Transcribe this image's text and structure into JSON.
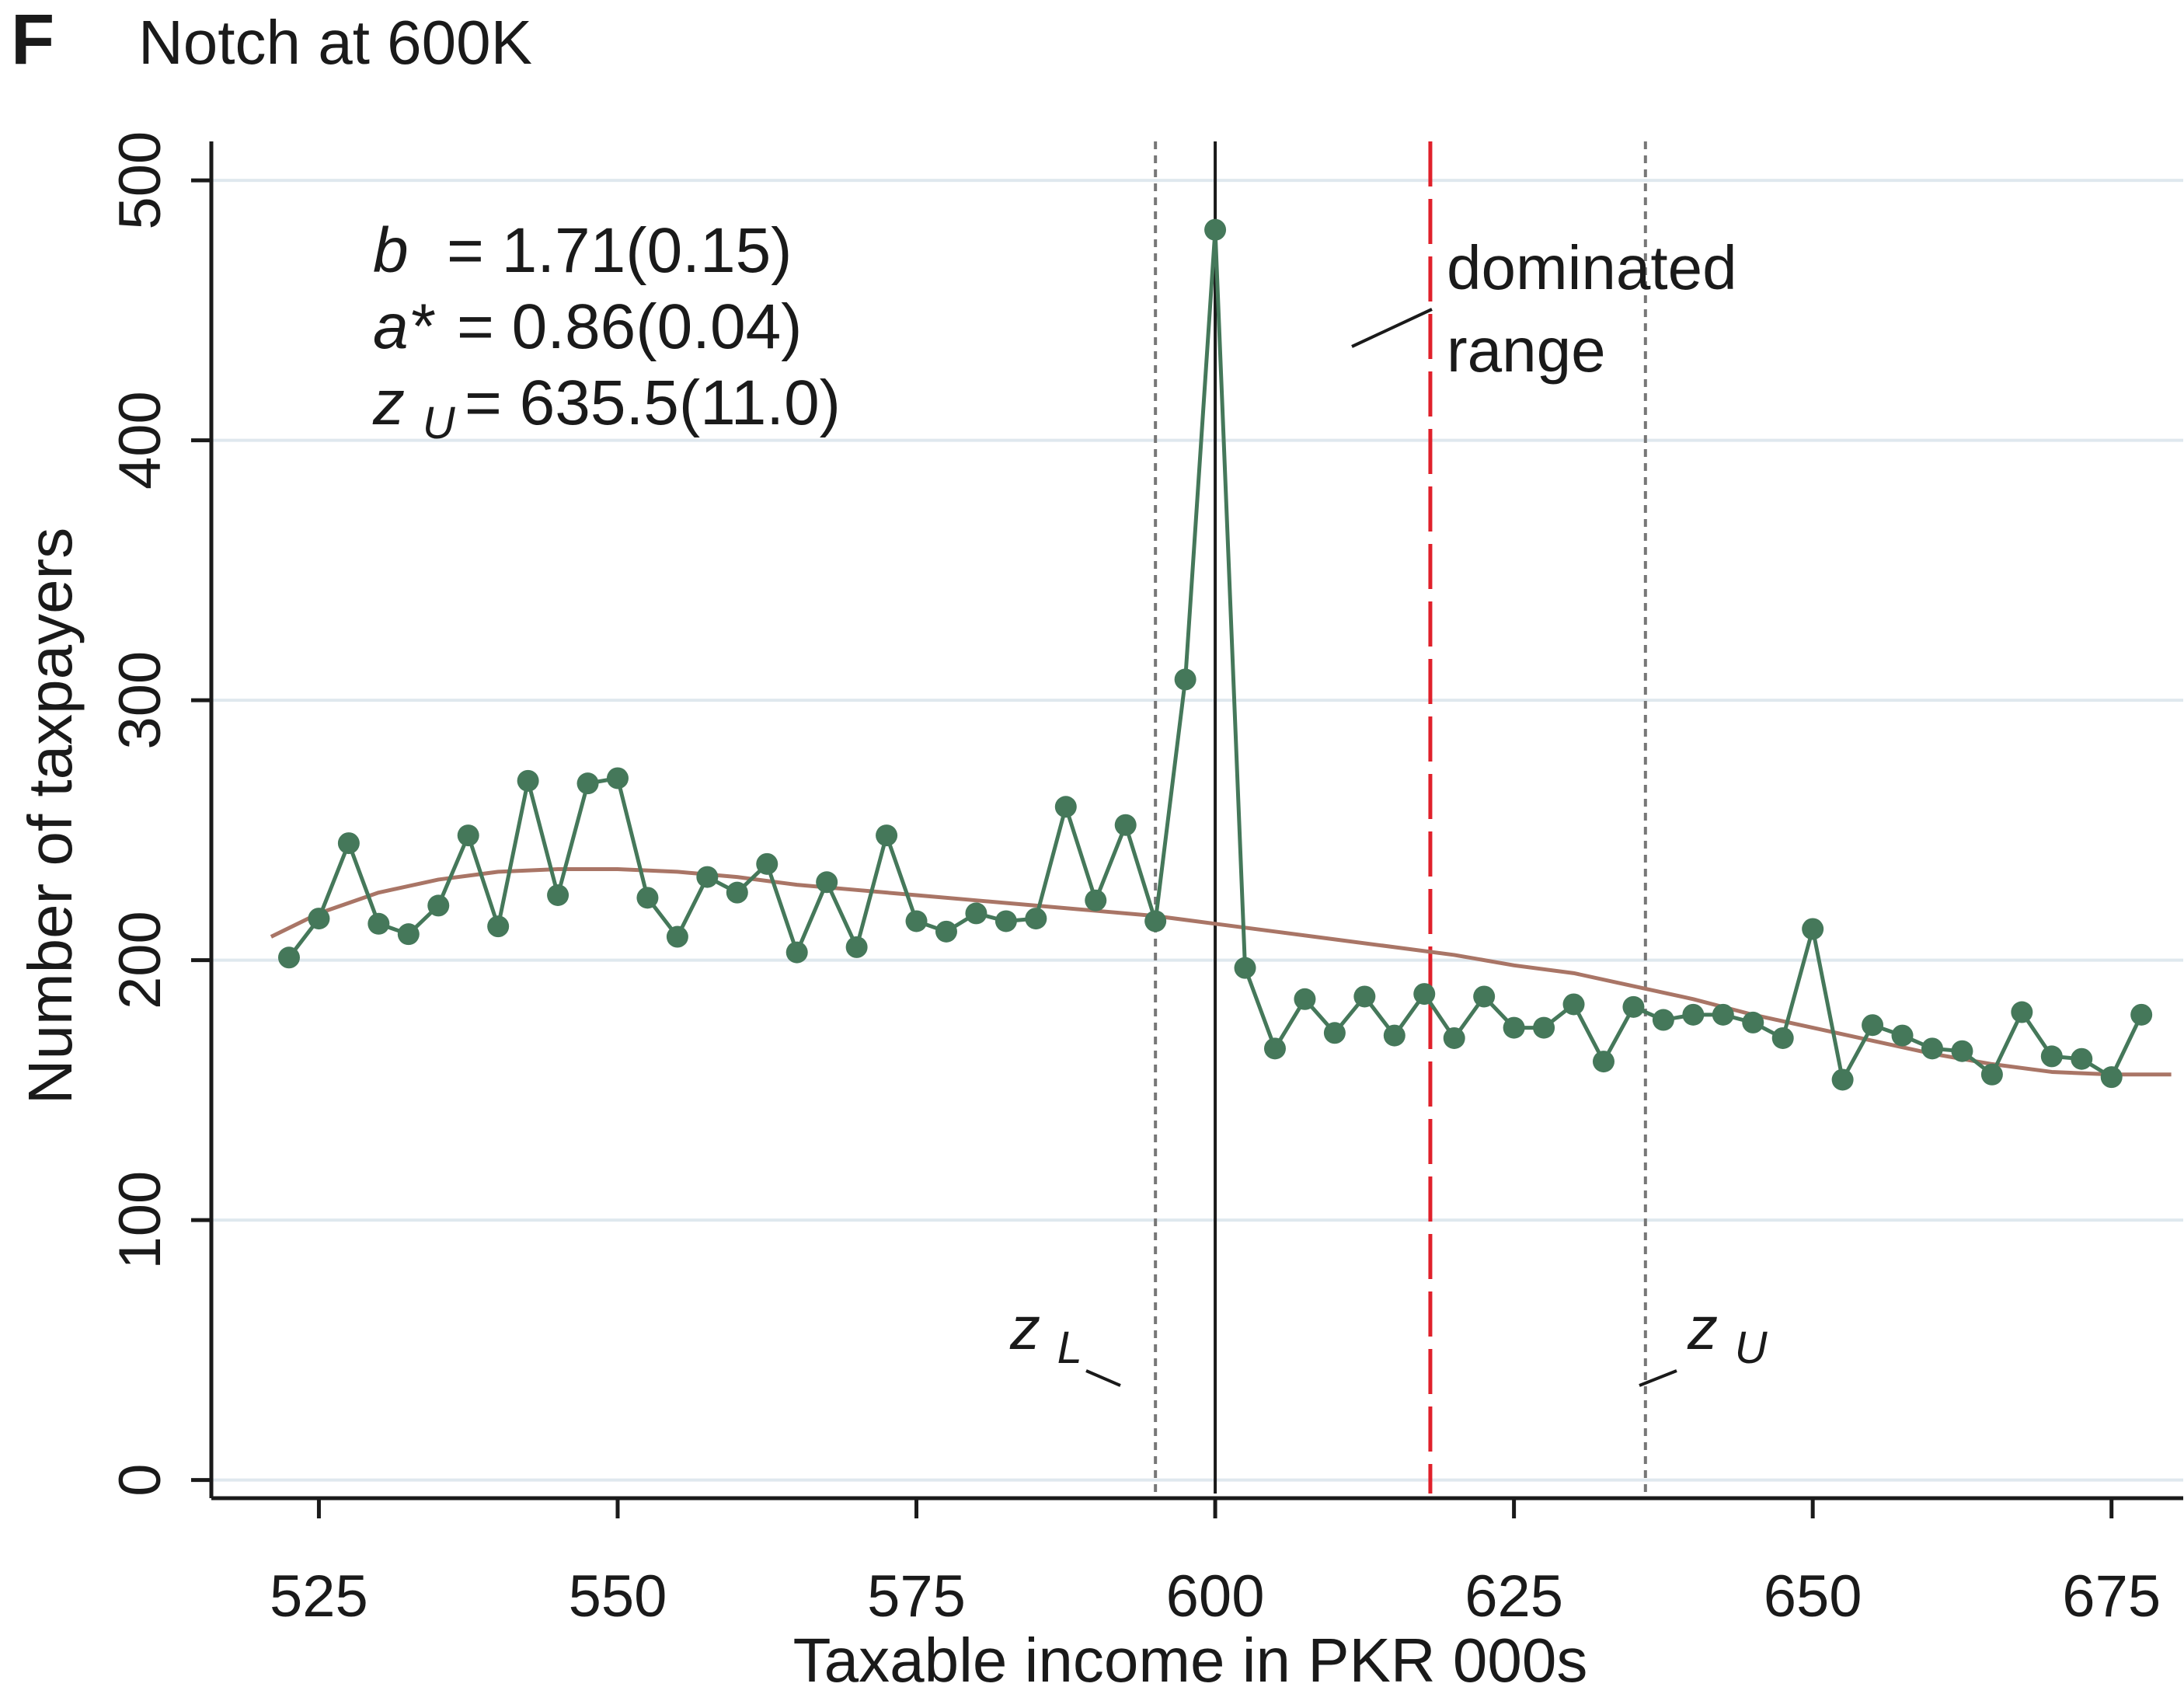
{
  "panel": {
    "letter": "F",
    "title": "Notch at 600K"
  },
  "chart_data": {
    "type": "line",
    "xlabel": "Taxable income in PKR 000s",
    "ylabel": "Number of taxpayers",
    "xlim": [
      516,
      681
    ],
    "ylim": [
      -7,
      515
    ],
    "xticks": [
      525,
      550,
      575,
      600,
      625,
      650,
      675
    ],
    "yticks": [
      0,
      100,
      200,
      300,
      400,
      500
    ],
    "xtick_labels": [
      "525",
      "550",
      "575",
      "600",
      "625",
      "650",
      "675"
    ],
    "ytick_labels": [
      "0",
      "100",
      "200",
      "300",
      "400",
      "500"
    ],
    "grid": true,
    "series": [
      {
        "color": "#45785a",
        "marker": "circle",
        "x": [
          522.5,
          525,
          527.5,
          530,
          532.5,
          535,
          537.5,
          540,
          542.5,
          545,
          547.5,
          550,
          552.5,
          555,
          557.5,
          560,
          562.5,
          565,
          567.5,
          570,
          572.5,
          575,
          577.5,
          580,
          582.5,
          585,
          587.5,
          590,
          592.5,
          595,
          597.5,
          600,
          602.5,
          605,
          607.5,
          610,
          612.5,
          615,
          617.5,
          620,
          622.5,
          625,
          627.5,
          630,
          632.5,
          635,
          637.5,
          640,
          642.5,
          645,
          647.5,
          650,
          652.5,
          655,
          657.5,
          660,
          662.5,
          665,
          667.5,
          670,
          672.5,
          675,
          677.5
        ],
        "y": [
          201,
          216,
          245,
          214,
          210,
          221,
          248,
          213,
          269,
          225,
          268,
          270,
          224,
          209,
          232,
          226,
          237,
          203,
          230,
          205,
          248,
          215,
          211,
          218,
          215,
          216,
          259,
          223,
          252,
          215,
          308,
          481,
          197,
          166,
          185,
          172,
          186,
          171,
          187,
          170,
          186,
          174,
          174,
          183,
          161,
          182,
          177,
          179,
          179,
          176,
          170,
          212,
          154,
          175,
          171,
          166,
          165,
          156,
          180,
          163,
          162,
          155,
          179
        ]
      },
      {
        "color": "#a97566",
        "marker": "none",
        "x": [
          521,
          525,
          530,
          535,
          540,
          545,
          550,
          555,
          560,
          565,
          570,
          575,
          580,
          585,
          590,
          595,
          600,
          605,
          610,
          615,
          620,
          625,
          630,
          635,
          640,
          645,
          650,
          655,
          660,
          665,
          670,
          675,
          680
        ],
        "y": [
          209,
          218,
          226,
          231,
          234,
          235,
          235,
          234,
          232,
          229,
          227,
          225,
          223,
          221,
          219,
          217,
          214,
          211,
          208,
          205,
          202,
          198,
          195,
          190,
          185,
          179,
          174,
          169,
          164,
          160,
          157,
          156,
          156
        ]
      }
    ],
    "vlines": [
      {
        "x": 595,
        "style": "dotted",
        "color": "#777777"
      },
      {
        "x": 600,
        "style": "solid",
        "color": "#1a1a1a"
      },
      {
        "x": 618,
        "style": "long-dash",
        "color": "#e0202a"
      },
      {
        "x": 636,
        "style": "dotted",
        "color": "#777777"
      }
    ],
    "stats": [
      {
        "sym": "b",
        "sub": "",
        "text": "= 1.71(0.15)"
      },
      {
        "sym": "a*",
        "sub": "",
        "text": "= 0.86(0.04)"
      },
      {
        "sym": "z",
        "sub": "U",
        "text": "= 635.5(11.0)"
      }
    ],
    "annotations": {
      "dominated_line1": "dominated",
      "dominated_line2": "range",
      "zL_sym": "z",
      "zL_sub": "L",
      "zU_sym": "z",
      "zU_sub": "U"
    }
  }
}
